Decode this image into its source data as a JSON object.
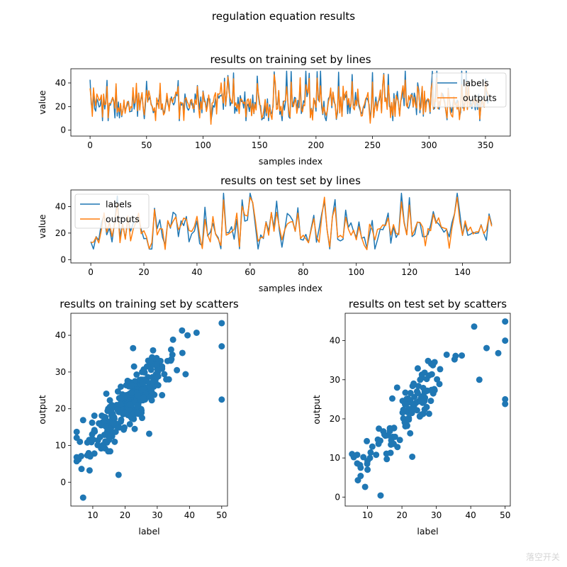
{
  "figure_title": "regulation equation results",
  "watermark": "落空开关",
  "colors": {
    "labels": "#1f77b4",
    "outputs": "#ff7f0e",
    "scatter": "#1f77b4"
  },
  "chart_data": [
    {
      "type": "line",
      "title": "results on training set by lines",
      "xlabel": "samples index",
      "ylabel": "value",
      "xlim": [
        -17,
        372
      ],
      "ylim": [
        -5,
        52
      ],
      "xticks": [
        0,
        50,
        100,
        150,
        200,
        250,
        300,
        350
      ],
      "yticks": [
        0,
        20,
        40
      ],
      "legend_position": "upper right",
      "n_points": 354,
      "seed": 7,
      "series": [
        {
          "name": "labels",
          "color": "#1f77b4",
          "role": "labels"
        },
        {
          "name": "outputs",
          "color": "#ff7f0e",
          "role": "outputs"
        }
      ]
    },
    {
      "type": "line",
      "title": "results on test set by lines",
      "xlabel": "samples index",
      "ylabel": "value",
      "xlim": [
        -7.5,
        158
      ],
      "ylim": [
        -2.5,
        52.5
      ],
      "xticks": [
        0,
        20,
        40,
        60,
        80,
        100,
        120,
        140
      ],
      "yticks": [
        0,
        20,
        40
      ],
      "legend_position": "upper left",
      "n_points": 152,
      "seed": 11,
      "series": [
        {
          "name": "labels",
          "color": "#1f77b4",
          "role": "labels"
        },
        {
          "name": "outputs",
          "color": "#ff7f0e",
          "role": "outputs"
        }
      ]
    },
    {
      "type": "scatter",
      "title": "results on training set by scatters",
      "xlabel": "label",
      "ylabel": "output",
      "xlim": [
        3.2,
        51.8
      ],
      "ylim": [
        -6.5,
        46
      ],
      "xticks": [
        10,
        20,
        30,
        40,
        50
      ],
      "yticks": [
        0,
        10,
        20,
        30,
        40
      ],
      "n_points": 300,
      "seed": 21,
      "points": [
        [
          7,
          -4.2
        ],
        [
          18,
          2
        ],
        [
          50,
          22.5
        ],
        [
          50,
          37
        ],
        [
          50,
          43.3
        ],
        [
          22.5,
          36.5
        ],
        [
          27.5,
          13.2
        ],
        [
          5,
          6.8
        ],
        [
          5,
          5.7
        ],
        [
          9,
          3.2
        ],
        [
          7,
          16.9
        ],
        [
          6,
          11
        ]
      ]
    },
    {
      "type": "scatter",
      "title": "results on test set by scatters",
      "xlabel": "label",
      "ylabel": "output",
      "xlim": [
        3.5,
        51.5
      ],
      "ylim": [
        -2.3,
        47
      ],
      "xticks": [
        10,
        20,
        30,
        40,
        50
      ],
      "yticks": [
        0,
        10,
        20,
        30,
        40
      ],
      "n_points": 120,
      "seed": 33,
      "points": [
        [
          13.8,
          0.4
        ],
        [
          50,
          44.9
        ],
        [
          50,
          40
        ],
        [
          50,
          25
        ],
        [
          50,
          23.8
        ],
        [
          48,
          36.8
        ],
        [
          44.6,
          38.1
        ],
        [
          42.5,
          30
        ],
        [
          23,
          10.3
        ],
        [
          33,
          36.4
        ],
        [
          5.5,
          11
        ],
        [
          8,
          5.4
        ],
        [
          10,
          9.2
        ],
        [
          10,
          7
        ]
      ]
    }
  ]
}
